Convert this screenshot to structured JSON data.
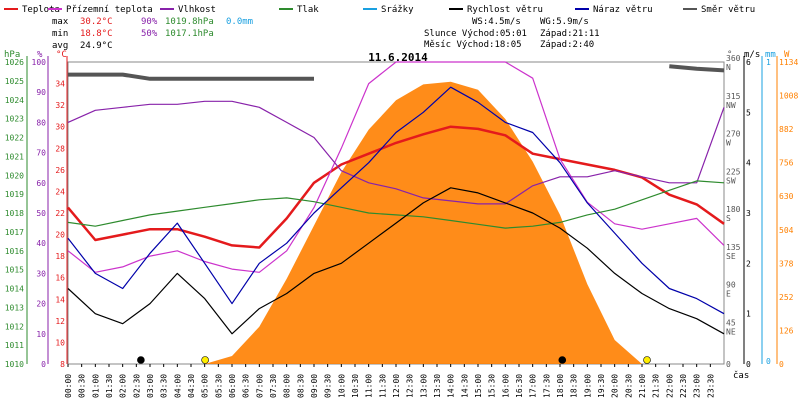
{
  "legend": [
    {
      "label": "Teplota",
      "color": "#e41a1c"
    },
    {
      "label": "Přízemní teplota",
      "color": "#cc33cc"
    },
    {
      "label": "Vlhkost",
      "color": "#8822aa"
    },
    {
      "label": "Tlak",
      "color": "#2e8b2e"
    },
    {
      "label": "Srážky",
      "color": "#1aa0e0"
    },
    {
      "label": "Rychlost větru",
      "color": "#000000"
    },
    {
      "label": "Náraz větru",
      "color": "#0000aa"
    },
    {
      "label": "Směr větru",
      "color": "#555555"
    }
  ],
  "stats": {
    "max_label": "max",
    "max_temp": "30.2°C",
    "max_hum": "90%",
    "max_press": "1019.8hPa",
    "max_rain": "0.0mm",
    "min_label": "min",
    "min_temp": "18.8°C",
    "min_hum": "50%",
    "min_press": "1017.1hPa",
    "avg_label": "avg",
    "avg_temp": "24.9°C"
  },
  "wind_info": {
    "ws": "WS:4.5m/s",
    "wg": "WG:5.9m/s"
  },
  "sun_moon": {
    "sun": "Slunce Východ:05:01",
    "sun_set": "Západ:21:11",
    "moon": "Měsíc  Východ:18:05",
    "moon_set": "Západ:2:40"
  },
  "axis_units": {
    "hpa": "hPa",
    "pct": "%",
    "degc": "°C",
    "deg": "°",
    "ms": "m/s",
    "mm": "mm",
    "wm2": "W",
    "time": "čas"
  },
  "chart_data": {
    "type": "line",
    "title": "11.6.2014",
    "xlabel": "čas",
    "x_ticks": [
      "00:00",
      "00:30",
      "01:00",
      "01:30",
      "02:00",
      "02:30",
      "03:00",
      "03:30",
      "04:00",
      "04:30",
      "05:00",
      "05:30",
      "06:00",
      "06:30",
      "07:00",
      "07:30",
      "08:00",
      "08:30",
      "09:00",
      "09:30",
      "10:00",
      "10:30",
      "11:00",
      "11:30",
      "12:00",
      "12:30",
      "13:00",
      "13:30",
      "14:00",
      "14:30",
      "15:00",
      "15:30",
      "16:00",
      "16:30",
      "17:00",
      "17:30",
      "18:00",
      "18:30",
      "19:00",
      "19:30",
      "20:00",
      "20:30",
      "21:00",
      "21:30",
      "22:00",
      "22:30",
      "23:00",
      "23:30"
    ],
    "axes": {
      "pressure_hpa": {
        "range": [
          1010,
          1026
        ],
        "ticks": [
          1010,
          1011,
          1012,
          1013,
          1014,
          1015,
          1016,
          1017,
          1018,
          1019,
          1020,
          1021,
          1022,
          1023,
          1024,
          1025,
          1026
        ]
      },
      "humidity_pct": {
        "range": [
          0,
          100
        ],
        "ticks": [
          0,
          10,
          20,
          30,
          40,
          50,
          60,
          70,
          80,
          90,
          100
        ]
      },
      "temperature_c": {
        "range": [
          8,
          36
        ],
        "ticks": [
          8,
          10,
          12,
          14,
          16,
          18,
          20,
          22,
          24,
          26,
          28,
          30,
          32,
          34
        ]
      },
      "wind_dir_deg": {
        "ticks": [
          {
            "v": 0,
            "l": "0"
          },
          {
            "v": 45,
            "l": "45 NE"
          },
          {
            "v": 90,
            "l": "90 E"
          },
          {
            "v": 135,
            "l": "135 SE"
          },
          {
            "v": 180,
            "l": "180 S"
          },
          {
            "v": 225,
            "l": "225 SW"
          },
          {
            "v": 270,
            "l": "270 W"
          },
          {
            "v": 315,
            "l": "315 NW"
          },
          {
            "v": 360,
            "l": "360 N"
          }
        ]
      },
      "wind_ms": {
        "range": [
          0,
          6
        ],
        "ticks": [
          0,
          1,
          2,
          3,
          4,
          5,
          6
        ]
      },
      "rain_mm": {
        "ticks": [
          0,
          1
        ]
      },
      "solar_wm2": {
        "range": [
          0,
          1134
        ],
        "ticks": [
          0,
          126,
          252,
          378,
          504,
          630,
          756,
          882,
          1008,
          1134
        ]
      }
    },
    "series": [
      {
        "name": "Teplota",
        "axis": "temperature_c",
        "color": "#e41a1c",
        "x": [
          0,
          1,
          2,
          3,
          4,
          5,
          6,
          7,
          8,
          9,
          10,
          11,
          12,
          13,
          14,
          15,
          16,
          17,
          18,
          19,
          20,
          21,
          22,
          23,
          24
        ],
        "values": [
          22.5,
          19.5,
          20.0,
          20.5,
          20.5,
          19.8,
          19.0,
          18.8,
          21.5,
          24.8,
          26.5,
          27.5,
          28.5,
          29.3,
          30.0,
          29.8,
          29.2,
          27.5,
          27.0,
          26.5,
          26.0,
          25.3,
          23.7,
          22.8,
          21.0
        ]
      },
      {
        "name": "Přízemní teplota",
        "axis": "temperature_c",
        "color": "#cc33cc",
        "x": [
          0,
          1,
          2,
          3,
          4,
          5,
          6,
          7,
          8,
          9,
          10,
          11,
          12,
          13,
          14,
          15,
          16,
          17,
          18,
          19,
          20,
          21,
          22,
          23,
          24
        ],
        "values": [
          18.5,
          16.5,
          17.0,
          18.0,
          18.5,
          17.5,
          16.8,
          16.5,
          18.5,
          22.5,
          28.0,
          34.0,
          36.0,
          36.0,
          36.0,
          36.0,
          36.0,
          34.5,
          27.0,
          23.0,
          21.0,
          20.5,
          21.0,
          21.5,
          19.0
        ]
      },
      {
        "name": "Vlhkost",
        "axis": "humidity_pct",
        "color": "#8822aa",
        "x": [
          0,
          1,
          2,
          3,
          4,
          5,
          6,
          7,
          8,
          9,
          10,
          11,
          12,
          13,
          14,
          15,
          16,
          17,
          18,
          19,
          20,
          21,
          22,
          23,
          24
        ],
        "values": [
          80,
          84,
          85,
          86,
          86,
          87,
          87,
          85,
          80,
          75,
          64,
          60,
          58,
          55,
          54,
          53,
          53,
          59,
          62,
          62,
          64,
          62,
          60,
          60,
          85
        ]
      },
      {
        "name": "Tlak",
        "axis": "pressure_hpa",
        "color": "#2e8b2e",
        "x": [
          0,
          1,
          2,
          3,
          4,
          5,
          6,
          7,
          8,
          9,
          10,
          11,
          12,
          13,
          14,
          15,
          16,
          17,
          18,
          19,
          20,
          21,
          22,
          23,
          24
        ],
        "values": [
          1017.5,
          1017.3,
          1017.6,
          1017.9,
          1018.1,
          1018.3,
          1018.5,
          1018.7,
          1018.8,
          1018.6,
          1018.3,
          1018.0,
          1017.9,
          1017.8,
          1017.6,
          1017.4,
          1017.2,
          1017.3,
          1017.5,
          1017.9,
          1018.2,
          1018.7,
          1019.2,
          1019.7,
          1019.6
        ]
      },
      {
        "name": "Rychlost větru",
        "axis": "wind_ms",
        "color": "#000000",
        "x": [
          0,
          1,
          2,
          3,
          4,
          5,
          6,
          7,
          8,
          9,
          10,
          11,
          12,
          13,
          14,
          15,
          16,
          17,
          18,
          19,
          20,
          21,
          22,
          23,
          24
        ],
        "values": [
          1.5,
          1.0,
          0.8,
          1.2,
          1.8,
          1.3,
          0.6,
          1.1,
          1.4,
          1.8,
          2.0,
          2.4,
          2.8,
          3.2,
          3.5,
          3.4,
          3.2,
          3.0,
          2.7,
          2.3,
          1.8,
          1.4,
          1.1,
          0.9,
          0.6
        ]
      },
      {
        "name": "Náraz větru",
        "axis": "wind_ms",
        "color": "#0000aa",
        "x": [
          0,
          1,
          2,
          3,
          4,
          5,
          6,
          7,
          8,
          9,
          10,
          11,
          12,
          13,
          14,
          15,
          16,
          17,
          18,
          19,
          20,
          21,
          22,
          23,
          24
        ],
        "values": [
          2.5,
          1.8,
          1.5,
          2.2,
          2.8,
          2.0,
          1.2,
          2.0,
          2.4,
          3.0,
          3.5,
          4.0,
          4.6,
          5.0,
          5.5,
          5.2,
          4.8,
          4.6,
          4.0,
          3.2,
          2.6,
          2.0,
          1.5,
          1.3,
          1.0
        ]
      },
      {
        "name": "Směr větru",
        "axis": "wind_dir_deg",
        "color": "#555555",
        "x": [
          0,
          1,
          2,
          3,
          4,
          5,
          6,
          7,
          8,
          9,
          22,
          23,
          24
        ],
        "values": [
          345,
          345,
          345,
          340,
          340,
          340,
          340,
          340,
          340,
          340,
          355,
          352,
          350
        ]
      }
    ],
    "solar": {
      "name": "solar radiation",
      "axis": "solar_wm2",
      "color": "#ff8000",
      "x": [
        5,
        6,
        7,
        8,
        9,
        10,
        11,
        12,
        13,
        14,
        15,
        16,
        17,
        18,
        19,
        20,
        21
      ],
      "values": [
        0,
        30,
        140,
        320,
        520,
        720,
        880,
        990,
        1050,
        1060,
        1030,
        920,
        760,
        560,
        300,
        90,
        0
      ]
    },
    "markers": [
      {
        "kind": "moonset",
        "time": "02:40"
      },
      {
        "kind": "sunrise",
        "time": "05:01"
      },
      {
        "kind": "moonrise",
        "time": "18:05"
      },
      {
        "kind": "sunset",
        "time": "21:11"
      }
    ]
  }
}
